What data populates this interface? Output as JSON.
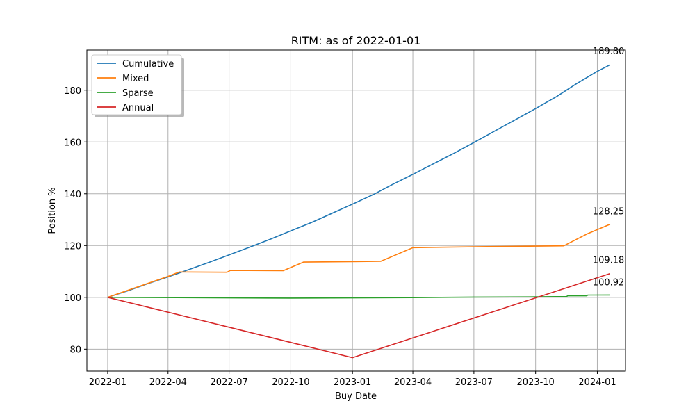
{
  "chart_data": {
    "type": "line",
    "title": "RITM: as of 2022-01-01",
    "xlabel": "Buy Date",
    "ylabel": "Position %",
    "xlim": [
      "2021-12-01",
      "2024-02-12"
    ],
    "ylim": [
      71.5,
      195.5
    ],
    "x_ticks": [
      "2022-01",
      "2022-04",
      "2022-07",
      "2022-10",
      "2023-01",
      "2023-04",
      "2023-07",
      "2023-10",
      "2024-01"
    ],
    "y_ticks": [
      80,
      100,
      120,
      140,
      160,
      180
    ],
    "grid": true,
    "legend_position": "top-left",
    "series": [
      {
        "name": "Cumulative",
        "color": "#1f77b4",
        "points": [
          [
            "2022-01-01",
            100
          ],
          [
            "2022-02-01",
            102.6
          ],
          [
            "2022-03-01",
            105.2
          ],
          [
            "2022-04-01",
            107.9
          ],
          [
            "2022-05-01",
            110.6
          ],
          [
            "2022-06-01",
            113.5
          ],
          [
            "2022-07-01",
            116.4
          ],
          [
            "2022-08-01",
            119.4
          ],
          [
            "2022-09-01",
            122.5
          ],
          [
            "2022-10-01",
            125.7
          ],
          [
            "2022-11-01",
            128.9
          ],
          [
            "2022-12-01",
            132.4
          ],
          [
            "2023-01-01",
            136.0
          ],
          [
            "2023-02-01",
            139.7
          ],
          [
            "2023-03-01",
            143.5
          ],
          [
            "2023-04-01",
            147.5
          ],
          [
            "2023-05-01",
            151.5
          ],
          [
            "2023-06-01",
            155.6
          ],
          [
            "2023-07-01",
            159.8
          ],
          [
            "2023-08-01",
            164.2
          ],
          [
            "2023-09-01",
            168.6
          ],
          [
            "2023-10-01",
            172.9
          ],
          [
            "2023-11-01",
            177.5
          ],
          [
            "2023-12-01",
            182.5
          ],
          [
            "2024-01-01",
            187.3
          ],
          [
            "2024-01-20",
            189.8
          ]
        ]
      },
      {
        "name": "Mixed",
        "color": "#ff7f0e",
        "points": [
          [
            "2022-01-01",
            100
          ],
          [
            "2022-04-01",
            108.1
          ],
          [
            "2022-04-18",
            109.8
          ],
          [
            "2022-06-28",
            109.7
          ],
          [
            "2022-07-03",
            110.4
          ],
          [
            "2022-09-20",
            110.3
          ],
          [
            "2022-10-20",
            113.6
          ],
          [
            "2023-01-01",
            113.8
          ],
          [
            "2023-02-12",
            113.9
          ],
          [
            "2023-04-01",
            119.2
          ],
          [
            "2023-07-20",
            119.6
          ],
          [
            "2023-11-12",
            119.9
          ],
          [
            "2023-12-16",
            124.4
          ],
          [
            "2024-01-20",
            128.25
          ]
        ]
      },
      {
        "name": "Sparse",
        "color": "#2ca02c",
        "points": [
          [
            "2022-01-01",
            100
          ],
          [
            "2022-07-01",
            99.8
          ],
          [
            "2022-10-01",
            99.7
          ],
          [
            "2023-01-01",
            99.8
          ],
          [
            "2023-04-01",
            99.9
          ],
          [
            "2023-07-01",
            100.1
          ],
          [
            "2023-10-01",
            100.2
          ],
          [
            "2023-11-16",
            100.3
          ],
          [
            "2023-11-18",
            100.6
          ],
          [
            "2023-12-16",
            100.6
          ],
          [
            "2023-12-18",
            100.9
          ],
          [
            "2024-01-20",
            100.92
          ]
        ]
      },
      {
        "name": "Annual",
        "color": "#d62728",
        "points": [
          [
            "2022-01-01",
            100
          ],
          [
            "2023-01-01",
            76.7
          ],
          [
            "2024-01-20",
            109.18
          ]
        ]
      }
    ],
    "end_labels": [
      {
        "series": "Cumulative",
        "date": "2024-01-20",
        "value": 189.8,
        "text": "189.80"
      },
      {
        "series": "Mixed",
        "date": "2024-01-20",
        "value": 128.25,
        "text": "128.25"
      },
      {
        "series": "Annual",
        "date": "2024-01-20",
        "value": 109.18,
        "text": "109.18"
      },
      {
        "series": "Sparse",
        "date": "2024-01-20",
        "value": 100.92,
        "text": "100.92"
      }
    ]
  }
}
